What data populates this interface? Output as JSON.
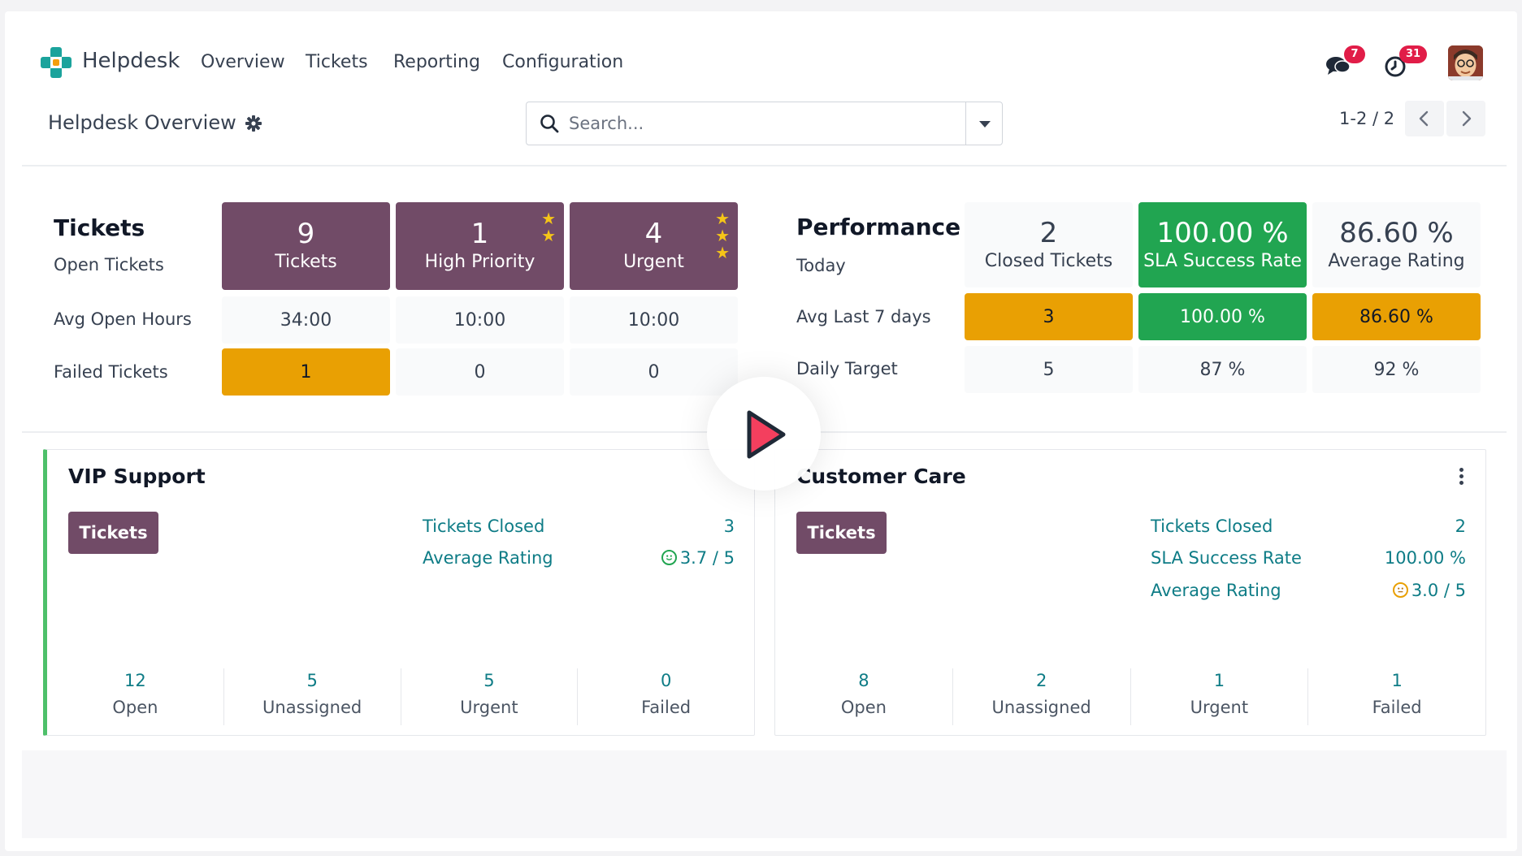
{
  "app": {
    "name": "Helpdesk",
    "logo_icon": "helpdesk-logo-icon",
    "nav": [
      "Overview",
      "Tickets",
      "Reporting",
      "Configuration"
    ]
  },
  "systray": {
    "messages_badge": "7",
    "activities_badge": "31"
  },
  "control": {
    "title": "Helpdesk Overview",
    "search_placeholder": "Search...",
    "pager": "1-2 / 2"
  },
  "tickets_table": {
    "title": "Tickets",
    "subtitle": "Open Tickets",
    "headers": [
      {
        "value": "9",
        "label": "Tickets",
        "stars": 0
      },
      {
        "value": "1",
        "label": "High Priority",
        "stars": 2
      },
      {
        "value": "4",
        "label": "Urgent",
        "stars": 3
      }
    ],
    "avg_open_hours": {
      "label": "Avg Open Hours",
      "values": [
        "34:00",
        "10:00",
        "10:00"
      ]
    },
    "failed_tickets": {
      "label": "Failed Tickets",
      "values": [
        "1",
        "0",
        "0"
      ]
    }
  },
  "performance_table": {
    "title": "Performance",
    "subtitle": "Today",
    "headers": [
      {
        "value": "2",
        "label": "Closed Tickets"
      },
      {
        "value": "100.00 %",
        "label": "SLA Success Rate"
      },
      {
        "value": "86.60 %",
        "label": "Average Rating"
      }
    ],
    "avg_last_7_days": {
      "label": "Avg Last 7 days",
      "values": [
        "3",
        "100.00 %",
        "86.60 %"
      ]
    },
    "daily_target": {
      "label": "Daily Target",
      "values": [
        "5",
        "87 %",
        "92 %"
      ]
    }
  },
  "teams": [
    {
      "name": "VIP Support",
      "button": "Tickets",
      "stats": [
        {
          "label": "Tickets Closed",
          "value": "3"
        },
        {
          "label": "Average Rating",
          "value": "3.7 / 5",
          "icon": "smiley-happy-icon"
        }
      ],
      "footer": [
        {
          "n": "12",
          "l": "Open"
        },
        {
          "n": "5",
          "l": "Unassigned"
        },
        {
          "n": "5",
          "l": "Urgent"
        },
        {
          "n": "0",
          "l": "Failed"
        }
      ]
    },
    {
      "name": "Customer Care",
      "button": "Tickets",
      "stats": [
        {
          "label": "Tickets Closed",
          "value": "2"
        },
        {
          "label": "SLA Success Rate",
          "value": "100.00 %"
        },
        {
          "label": "Average Rating",
          "value": "3.0 / 5",
          "icon": "smiley-neutral-icon"
        }
      ],
      "footer": [
        {
          "n": "8",
          "l": "Open"
        },
        {
          "n": "2",
          "l": "Unassigned"
        },
        {
          "n": "1",
          "l": "Urgent"
        },
        {
          "n": "1",
          "l": "Failed"
        }
      ]
    }
  ],
  "colors": {
    "brand_purple": "#714b67",
    "warning_orange": "#e9a003",
    "success_green": "#21a551",
    "link_teal": "#0e7c86",
    "badge_red": "#e11d48"
  },
  "overlay": {
    "icon": "play-icon"
  }
}
